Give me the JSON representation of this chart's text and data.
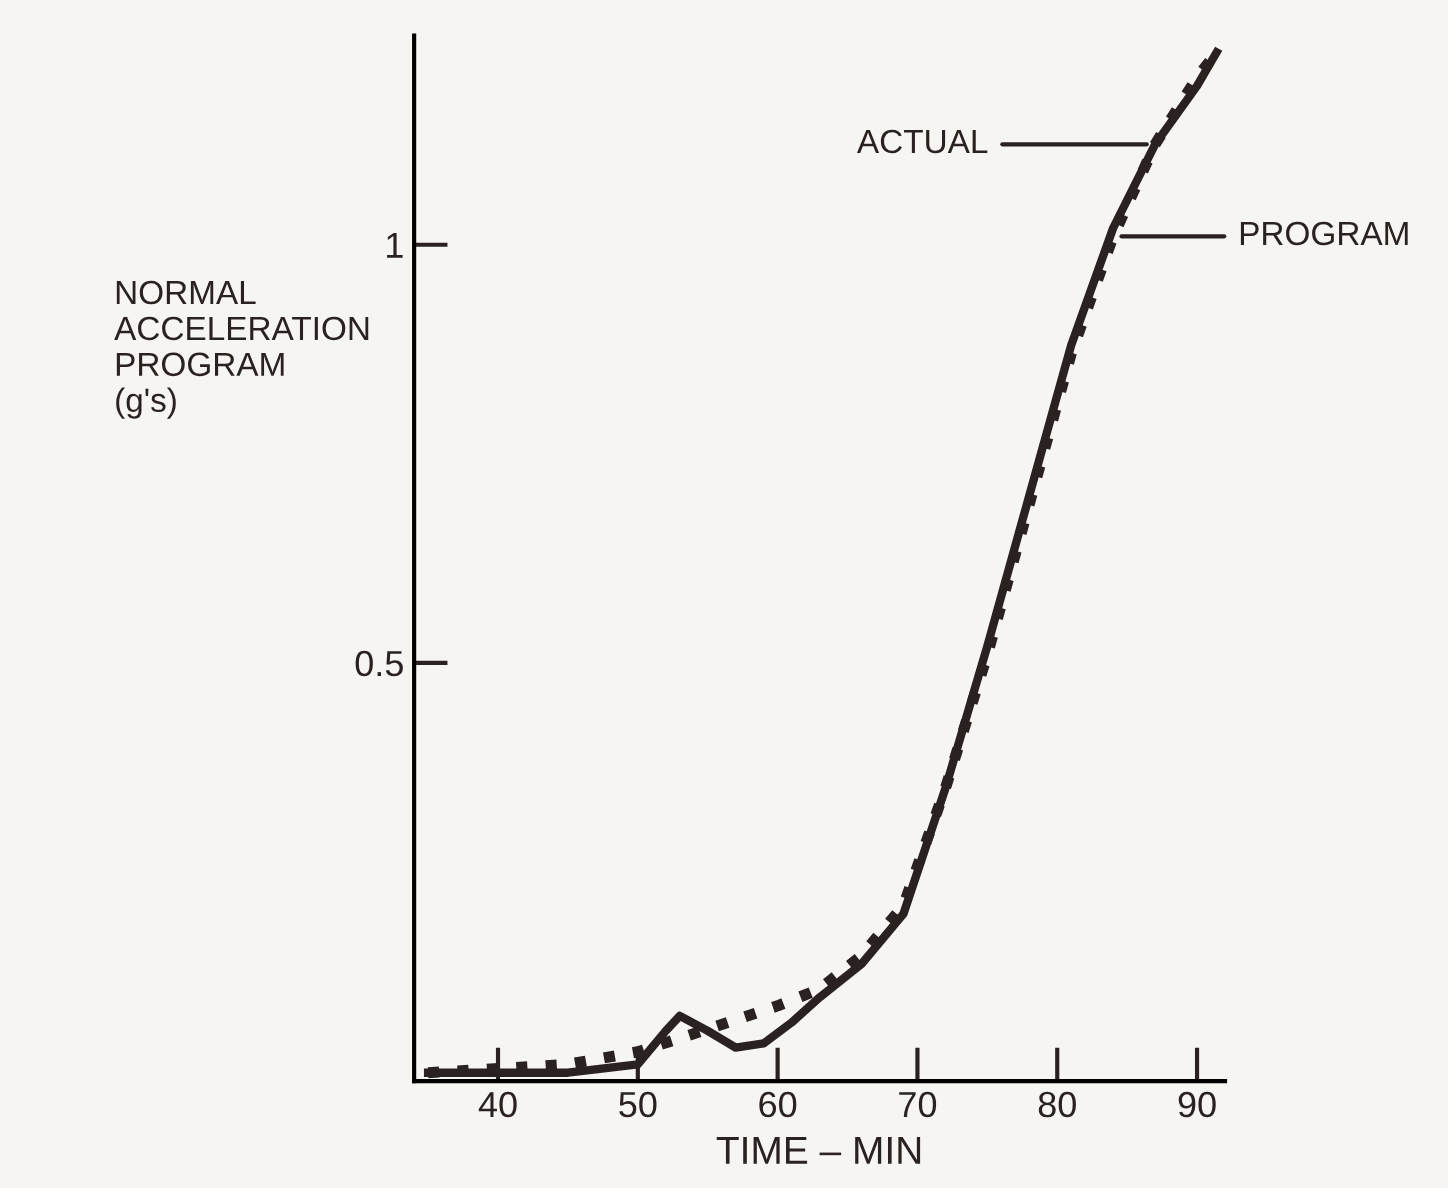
{
  "chart_data": {
    "type": "line",
    "xlabel": "TIME – MIN",
    "ylabel": "NORMAL\nACCELERATION\nPROGRAM\n(g's)",
    "xlim": [
      34,
      92
    ],
    "ylim": [
      0,
      1.25
    ],
    "xticks": [
      40,
      50,
      60,
      70,
      80,
      90
    ],
    "yticks": [
      0.5,
      1
    ],
    "grid": false,
    "marker": "none",
    "series": [
      {
        "color": "#2a2220",
        "line_style": "solid",
        "x": [
          35,
          40,
          45,
          50,
          52,
          53,
          55,
          57,
          59,
          61,
          63,
          66,
          69,
          72,
          75,
          78,
          81,
          84,
          87,
          90,
          91.4
        ],
        "values": [
          0.01,
          0.01,
          0.01,
          0.02,
          0.06,
          0.078,
          0.06,
          0.04,
          0.045,
          0.07,
          0.1,
          0.14,
          0.2,
          0.35,
          0.52,
          0.7,
          0.88,
          1.02,
          1.12,
          1.19,
          1.23
        ]
      },
      {
        "color": "#2a2220",
        "line_style": "dotted",
        "x": [
          35,
          40,
          45,
          50,
          55,
          60,
          63,
          66,
          69,
          72,
          75,
          78,
          81,
          84,
          87,
          90,
          91.4
        ],
        "values": [
          0.01,
          0.015,
          0.02,
          0.035,
          0.062,
          0.09,
          0.11,
          0.15,
          0.21,
          0.35,
          0.51,
          0.69,
          0.87,
          1.01,
          1.12,
          1.2,
          1.23
        ]
      }
    ],
    "annotations": [
      "ACTUAL",
      "PROGRAM"
    ]
  }
}
